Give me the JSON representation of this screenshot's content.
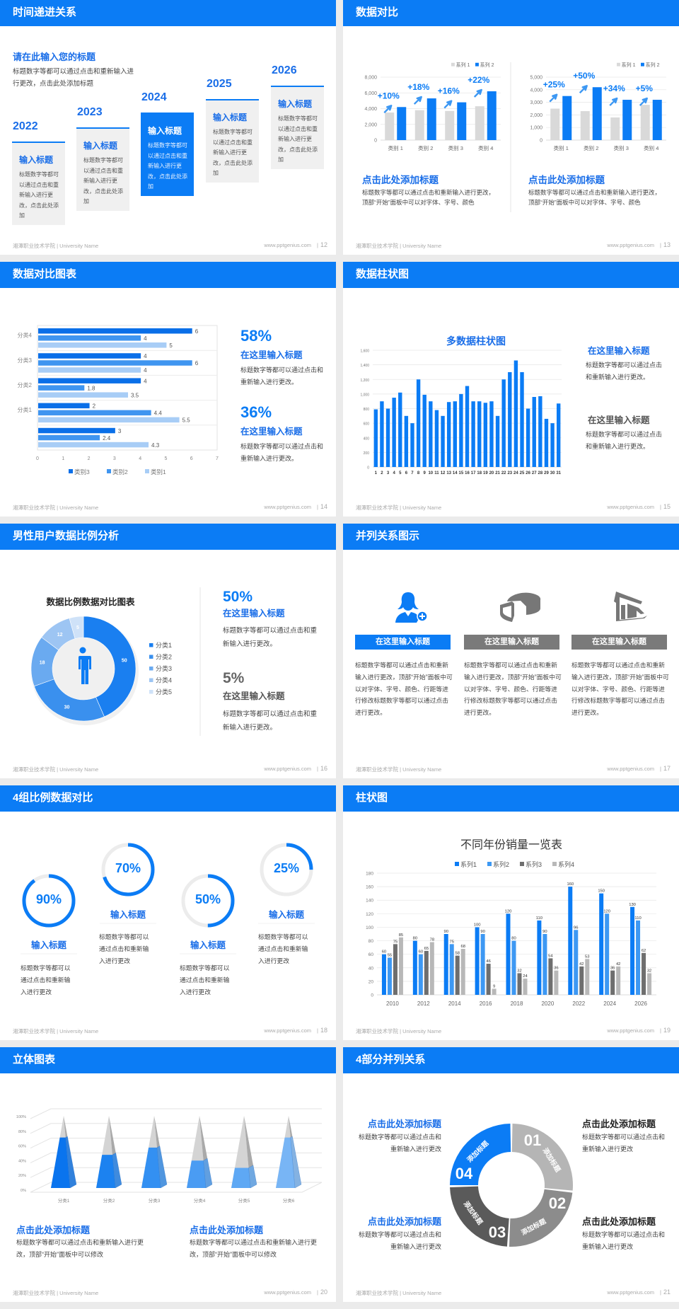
{
  "footer": {
    "org": "湘潭职业技术学院 | University Name",
    "url": "www.pptgenius.com",
    "sep": "|"
  },
  "colors": {
    "brand": "#0b7cf5",
    "heading_blue": "#1a6ee8",
    "card_gray": "#f0f0f0",
    "icon_gray": "#777777",
    "track_gray": "#ececec"
  },
  "slides": [
    {
      "page": "12",
      "title": "时间递进关系",
      "intro_title": "请在此输入您的标题",
      "intro_body": "标题数字等都可以通过点击和重新输入进行更改，点击此处添加标题",
      "items": [
        {
          "year": "2022",
          "heading": "输入标题",
          "body": "标题数字等都可以通过点击和重新输入进行更改，点击此处添加",
          "active": false
        },
        {
          "year": "2023",
          "heading": "输入标题",
          "body": "标题数字等都可以通过点击和重新输入进行更改，点击此处添加",
          "active": false
        },
        {
          "year": "2024",
          "heading": "输入标题",
          "body": "标题数字等都可以通过点击和重新输入进行更改，点击此处添加",
          "active": true
        },
        {
          "year": "2025",
          "heading": "输入标题",
          "body": "标题数字等都可以通过点击和重新输入进行更改，点击此处添加",
          "active": false
        },
        {
          "year": "2026",
          "heading": "输入标题",
          "body": "标题数字等都可以通过点击和重新输入进行更改，点击此处添加",
          "active": false
        }
      ]
    },
    {
      "page": "13",
      "title": "数据对比",
      "blocks": [
        {
          "heading": "点击此处添加标题",
          "body": "标题数字等都可以通过点击和重新输入进行更改，顶部“开始”面板中可以对字体、字号、颜色"
        },
        {
          "heading": "点击此处添加标题",
          "body": "标题数字等都可以通过点击和重新输入进行更改，顶部“开始”面板中可以对字体、字号、颜色"
        }
      ]
    },
    {
      "page": "14",
      "title": "数据对比图表",
      "stats": [
        {
          "value": "58%",
          "heading": "在这里输入标题",
          "body": "标题数字等都可以通过点击和重新输入进行更改。"
        },
        {
          "value": "36%",
          "heading": "在这里输入标题",
          "body": "标题数字等都可以通过点击和重新输入进行更改。"
        }
      ]
    },
    {
      "page": "15",
      "title": "数据柱状图",
      "notes": [
        {
          "heading": "在这里输入标题",
          "body": "标题数字等都可以通过点击和重新输入进行更改。"
        },
        {
          "heading": "在这里输入标题",
          "body": "标题数字等都可以通过点击和重新输入进行更改。"
        }
      ]
    },
    {
      "page": "16",
      "title": "男性用户数据比例分析",
      "stats": [
        {
          "value": "50%",
          "heading": "在这里输入标题",
          "body": "标题数字等都可以通过点击和重新输入进行更改。"
        },
        {
          "value": "5%",
          "heading": "在这里输入标题",
          "body": "标题数字等都可以通过点击和重新输入进行更改。"
        }
      ]
    },
    {
      "page": "17",
      "title": "并列关系图示",
      "columns": [
        {
          "icon": "user-add-icon",
          "heading": "在这里输入标题",
          "body": "标题数字等都可以通过点击和重新输入进行更改，顶部“开始”面板中可以对字体、字号、颜色、行距等进行修改标题数字等都可以通过点击进行更改。",
          "active": true
        },
        {
          "icon": "pie-chart-3d-icon",
          "heading": "在这里输入标题",
          "body": "标题数字等都可以通过点击和重新输入进行更改，顶部“开始”面板中可以对字体、字号、颜色、行距等进行修改标题数字等都可以通过点击进行更改。",
          "active": false
        },
        {
          "icon": "store-icon",
          "heading": "在这里输入标题",
          "body": "标题数字等都可以通过点击和重新输入进行更改，顶部“开始”面板中可以对字体、字号、颜色、行距等进行修改标题数字等都可以通过点击进行更改。",
          "active": false
        }
      ]
    },
    {
      "page": "18",
      "title": "4组比例数据对比",
      "rings": [
        {
          "percent": 90,
          "label": "90%",
          "heading": "输入标题",
          "body": "标题数字等都可以通过点击和重新输入进行更改"
        },
        {
          "percent": 70,
          "label": "70%",
          "heading": "输入标题",
          "body": "标题数字等都可以通过点击和重新输入进行更改"
        },
        {
          "percent": 50,
          "label": "50%",
          "heading": "输入标题",
          "body": "标题数字等都可以通过点击和重新输入进行更改"
        },
        {
          "percent": 25,
          "label": "25%",
          "heading": "输入标题",
          "body": "标题数字等都可以通过点击和重新输入进行更改"
        }
      ]
    },
    {
      "page": "19",
      "title": "柱状图"
    },
    {
      "page": "20",
      "title": "立体图表",
      "blocks": [
        {
          "heading": "点击此处添加标题",
          "body": "标题数字等都可以通过点击和重新输入进行更改，顶部“开始”面板中可以修改"
        },
        {
          "heading": "点击此处添加标题",
          "body": "标题数字等都可以通过点击和重新输入进行更改，顶部“开始”面板中可以修改"
        }
      ]
    },
    {
      "page": "21",
      "title": "4部分并列关系",
      "segments": [
        {
          "number": "01",
          "label": "添加标题",
          "color": "#b5b5b5"
        },
        {
          "number": "02",
          "label": "添加标题",
          "color": "#8c8c8c"
        },
        {
          "number": "03",
          "label": "添加标题",
          "color": "#5a5a5a"
        },
        {
          "number": "04",
          "label": "添加标题",
          "color": "#0b7cf5"
        }
      ],
      "blocks": [
        {
          "heading": "点击此处添加标题",
          "body": "标题数字等都可以通过点击和重新输入进行更改"
        },
        {
          "heading": "点击此处添加标题",
          "body": "标题数字等都可以通过点击和重新输入进行更改"
        },
        {
          "heading": "点击此处添加标题",
          "body": "标题数字等都可以通过点击和重新输入进行更改"
        },
        {
          "heading": "点击此处添加标题",
          "body": "标题数字等都可以通过点击和重新输入进行更改"
        }
      ]
    }
  ],
  "chart_data": [
    {
      "type": "bar",
      "categories": [
        "类别 1",
        "类别 2",
        "类别 3",
        "类别 4"
      ],
      "series": [
        {
          "name": "系列 1",
          "values": [
            3500,
            3800,
            3700,
            4300
          ],
          "color": "#d9d9d9"
        },
        {
          "name": "系列 2",
          "values": [
            4200,
            5300,
            4800,
            6200
          ],
          "color": "#0b7cf5"
        }
      ],
      "ylim": [
        0,
        8000
      ],
      "yticks": [
        "0",
        "2,000",
        "4,000",
        "6,000",
        "8,000"
      ],
      "annotations": [
        "+10%",
        "+18%",
        "+16%",
        "+22%"
      ],
      "legend": "top-right",
      "grid": true
    },
    {
      "type": "bar",
      "categories": [
        "类别 1",
        "类别 2",
        "类别 3",
        "类别 4"
      ],
      "series": [
        {
          "name": "系列 1",
          "values": [
            2500,
            2300,
            1800,
            2800
          ],
          "color": "#d9d9d9"
        },
        {
          "name": "系列 2",
          "values": [
            3500,
            4200,
            3200,
            3200
          ],
          "color": "#0b7cf5"
        }
      ],
      "ylim": [
        0,
        5000
      ],
      "yticks": [
        "0",
        "1,000",
        "2,000",
        "3,000",
        "4,000",
        "5,000"
      ],
      "annotations": [
        "+25%",
        "+50%",
        "+34%",
        "+5%"
      ],
      "legend": "top-right",
      "grid": true
    },
    {
      "type": "bar",
      "orientation": "horizontal",
      "categories": [
        "分类4",
        "分类3",
        "分类2",
        "分类1",
        ""
      ],
      "series": [
        {
          "name": "类别3",
          "values": [
            6,
            4,
            4,
            2,
            3
          ],
          "color": "#0a6fe8"
        },
        {
          "name": "类别2",
          "values": [
            4,
            6,
            1.8,
            4.4,
            2.4
          ],
          "color": "#3f95f0"
        },
        {
          "name": "类别1",
          "values": [
            5,
            4,
            3.5,
            5.5,
            4.3
          ],
          "color": "#a8cdf6"
        }
      ],
      "xlim": [
        0,
        7
      ],
      "xticks": [
        "0",
        "1",
        "2",
        "3",
        "4",
        "5",
        "6",
        "7"
      ],
      "legend": "bottom"
    },
    {
      "type": "bar",
      "title": "多数据柱状图",
      "categories": [
        "1",
        "2",
        "3",
        "4",
        "5",
        "6",
        "7",
        "8",
        "9",
        "10",
        "11",
        "12",
        "13",
        "14",
        "15",
        "16",
        "17",
        "18",
        "19",
        "20",
        "21",
        "22",
        "23",
        "24",
        "25",
        "26",
        "27",
        "28",
        "29",
        "30",
        "31"
      ],
      "series": [
        {
          "values": [
            790,
            900,
            800,
            950,
            1020,
            700,
            600,
            1200,
            990,
            900,
            780,
            700,
            890,
            900,
            1000,
            1110,
            900,
            900,
            880,
            900,
            700,
            1200,
            1300,
            1460,
            1300,
            800,
            960,
            970,
            660,
            600,
            870
          ],
          "color": "#0b7cf5"
        }
      ],
      "ylim": [
        0,
        1600
      ],
      "yticks": [
        "0",
        "200",
        "400",
        "600",
        "800",
        "1,000",
        "1,200",
        "1,400",
        "1,600"
      ],
      "grid": true
    },
    {
      "type": "pie",
      "subtype": "donut",
      "title": "数据比例数据对比图表",
      "categories": [
        "分类1",
        "分类2",
        "分类3",
        "分类4",
        "分类5"
      ],
      "values": [
        50,
        30,
        18,
        12,
        5
      ],
      "colors": [
        "#1a7ff0",
        "#3a90ee",
        "#6aaaf0",
        "#9dc5f3",
        "#cfe2f8"
      ],
      "legend": "right"
    },
    {
      "type": "bar",
      "title": "不同年份销量一览表",
      "categories": [
        "2010",
        "2012",
        "2014",
        "2016",
        "2018",
        "2020",
        "2022",
        "2024",
        "2026"
      ],
      "series": [
        {
          "name": "系列1",
          "values": [
            60,
            80,
            90,
            100,
            120,
            110,
            160,
            150,
            130
          ],
          "color": "#0b7cf5"
        },
        {
          "name": "系列2",
          "values": [
            55,
            60,
            75,
            90,
            80,
            90,
            96,
            120,
            110
          ],
          "color": "#3d98f3"
        },
        {
          "name": "系列3",
          "values": [
            75,
            65,
            58,
            46,
            32,
            54,
            42,
            36,
            62
          ],
          "color": "#6e6e6e"
        },
        {
          "name": "系列4",
          "values": [
            85,
            78,
            68,
            9,
            24,
            36,
            53,
            42,
            32
          ],
          "color": "#b8b8b8"
        }
      ],
      "ylim": [
        0,
        180
      ],
      "yticks": [
        "0",
        "20",
        "40",
        "60",
        "80",
        "100",
        "120",
        "140",
        "160",
        "180"
      ],
      "legend": "top",
      "grid": true
    },
    {
      "type": "bar",
      "subtype": "3d-pyramid",
      "categories": [
        "分类1",
        "分类2",
        "分类3",
        "分类4",
        "分类5",
        "分类6"
      ],
      "values": [
        70,
        46,
        56,
        38,
        28,
        70
      ],
      "colors": [
        "#0a74ee",
        "#1c82f0",
        "#3390f2",
        "#4a9cf3",
        "#5ea8f4",
        "#78b5f5"
      ],
      "ylim": [
        0,
        100
      ],
      "yticks": [
        "0%",
        "20%",
        "40%",
        "60%",
        "80%",
        "100%"
      ],
      "grid": true
    }
  ]
}
